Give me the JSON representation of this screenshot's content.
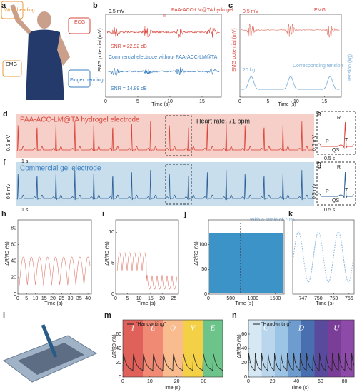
{
  "a": {
    "label": "a",
    "wrist": "Wrist bending",
    "ecg": "ECG",
    "emg": "EMG",
    "finger": "Finger bending"
  },
  "b": {
    "label": "b",
    "scale": "0.5 mV",
    "top_name": "PAA-ACC-LM@TA hydrogel",
    "mark1": "I",
    "mark2": "II",
    "top_snr": "SNR = 22.92 dB",
    "bottom_name": "Commercial electrode without PAA-ACC-LM@TA",
    "bottom_snr": "SNR = 14.89 dB",
    "ylabel": "EMG potential (mV)",
    "xlabel": "Time (s)",
    "xlim": [
      0,
      18
    ],
    "xticks": [
      0,
      5,
      10,
      15
    ]
  },
  "c": {
    "label": "c",
    "scale": "0.5 mV",
    "emg": "EMG",
    "ylabel": "EMG potential (mV)",
    "weight": "20 kg",
    "tension": "Corresponding tension",
    "y2label": "Tension (kg)",
    "xlabel": "Time (s)",
    "xlim": [
      0,
      18
    ],
    "xticks": [
      0,
      5,
      10,
      15
    ]
  },
  "d": {
    "label": "d",
    "name": "PAA-ACC-LM@TA hydrogel electrode",
    "rate": "Heart rate: 71 bpm",
    "scale": "0.5 mV",
    "time": "1 s"
  },
  "e": {
    "label": "e",
    "r": "R",
    "p": "P",
    "t": "T",
    "qs": "QS",
    "scale": "0.5 mV",
    "time": "0.5 s"
  },
  "f": {
    "label": "f",
    "name": "Commercial gel electrode",
    "scale": "0.5 mV",
    "time": "1 s"
  },
  "g": {
    "label": "g",
    "r": "R",
    "p": "P",
    "t": "T",
    "qs": "QS",
    "scale": "0.5 mV",
    "time": "0.5 s"
  },
  "h": {
    "label": "h",
    "ylabel": "ΔR/R0 (%)",
    "xlabel": "Time (s)",
    "xlim": [
      0,
      42
    ],
    "xticks": [
      0,
      5,
      10,
      15,
      20,
      25,
      30,
      35,
      40
    ],
    "ylim": [
      0,
      90
    ],
    "yticks": [
      0,
      20,
      40,
      60,
      80
    ]
  },
  "i": {
    "label": "i",
    "ylabel": "ΔR/R0 (%)",
    "xlabel": "Time (s)",
    "xlim": [
      0,
      27
    ],
    "xticks": [
      0,
      5,
      10,
      15,
      20,
      25
    ],
    "ylim": [
      0,
      12
    ],
    "yticks": [
      0,
      5,
      10
    ]
  },
  "j": {
    "label": "j",
    "ylabel": "ΔR/R0 (%)",
    "xlabel": "Time (s)",
    "note": "With a strain of 70%",
    "xlim": [
      0,
      1700
    ],
    "xticks": [
      0,
      500,
      1000,
      1500
    ],
    "ylim": [
      0,
      150
    ],
    "yticks": [
      0,
      50,
      100
    ]
  },
  "k": {
    "label": "k",
    "xlabel": "Time (s)",
    "xlim": [
      745,
      757
    ],
    "xticks": [
      747,
      750,
      753,
      756
    ]
  },
  "l": {
    "label": "l"
  },
  "m": {
    "label": "m",
    "legend": "\"Handwriting\"",
    "letters": [
      "I",
      "L",
      "O",
      "V",
      "E"
    ],
    "ylabel": "ΔR/R0 (%)",
    "xlabel": "Time (s)",
    "xlim": [
      0,
      37
    ],
    "xticks": [
      0,
      10,
      20,
      30
    ],
    "ylim": [
      0,
      80
    ],
    "yticks": [
      0,
      20,
      40,
      60
    ]
  },
  "n": {
    "label": "n",
    "legend": "\"Handwriting\"",
    "letters": [
      "C",
      "D",
      "U"
    ],
    "ylabel": "ΔR/R0 (%)",
    "xlabel": "Time (s)",
    "xlim": [
      0,
      88
    ],
    "xticks": [
      0,
      20,
      40,
      60,
      80
    ],
    "ylim": [
      0,
      80
    ],
    "yticks": [
      0,
      20,
      40,
      60
    ]
  }
}
